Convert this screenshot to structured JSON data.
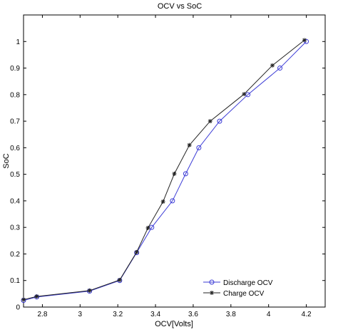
{
  "chart_data": {
    "type": "line",
    "title": "OCV vs SoC",
    "xlabel": "OCV[Volts]",
    "ylabel": "SoC",
    "xlim": [
      2.7,
      4.3
    ],
    "ylim": [
      0,
      1.1
    ],
    "xticks": [
      2.8,
      3,
      3.2,
      3.4,
      3.6,
      3.8,
      4,
      4.2
    ],
    "xtick_labels": [
      "2.8",
      "3",
      "3.2",
      "3.4",
      "3.6",
      "3.8",
      "4",
      "4.2"
    ],
    "yticks": [
      0,
      0.1,
      0.2,
      0.3,
      0.4,
      0.5,
      0.6,
      0.7,
      0.8,
      0.9,
      1
    ],
    "ytick_labels": [
      "0",
      "0.1",
      "0.2",
      "0.3",
      "0.4",
      "0.5",
      "0.6",
      "0.7",
      "0.8",
      "0.9",
      "1"
    ],
    "grid": false,
    "legend_position": "bottom-right",
    "series": [
      {
        "name": "Discharge OCV",
        "color": "#3b3bd6",
        "marker": "circle",
        "points": [
          [
            2.7,
            0.025
          ],
          [
            2.77,
            0.038
          ],
          [
            3.05,
            0.06
          ],
          [
            3.21,
            0.1
          ],
          [
            3.3,
            0.205
          ],
          [
            3.38,
            0.3
          ],
          [
            3.49,
            0.4
          ],
          [
            3.56,
            0.502
          ],
          [
            3.63,
            0.6
          ],
          [
            3.74,
            0.7
          ],
          [
            3.89,
            0.8
          ],
          [
            4.06,
            0.9
          ],
          [
            4.2,
            1.0
          ]
        ]
      },
      {
        "name": "Charge OCV",
        "color": "#222222",
        "marker": "star",
        "points": [
          [
            2.7,
            0.028
          ],
          [
            2.77,
            0.04
          ],
          [
            3.05,
            0.062
          ],
          [
            3.21,
            0.102
          ],
          [
            3.3,
            0.207
          ],
          [
            3.36,
            0.298
          ],
          [
            3.44,
            0.397
          ],
          [
            3.5,
            0.502
          ],
          [
            3.58,
            0.61
          ],
          [
            3.69,
            0.7
          ],
          [
            3.87,
            0.802
          ],
          [
            4.02,
            0.91
          ],
          [
            4.19,
            1.005
          ]
        ]
      }
    ]
  }
}
